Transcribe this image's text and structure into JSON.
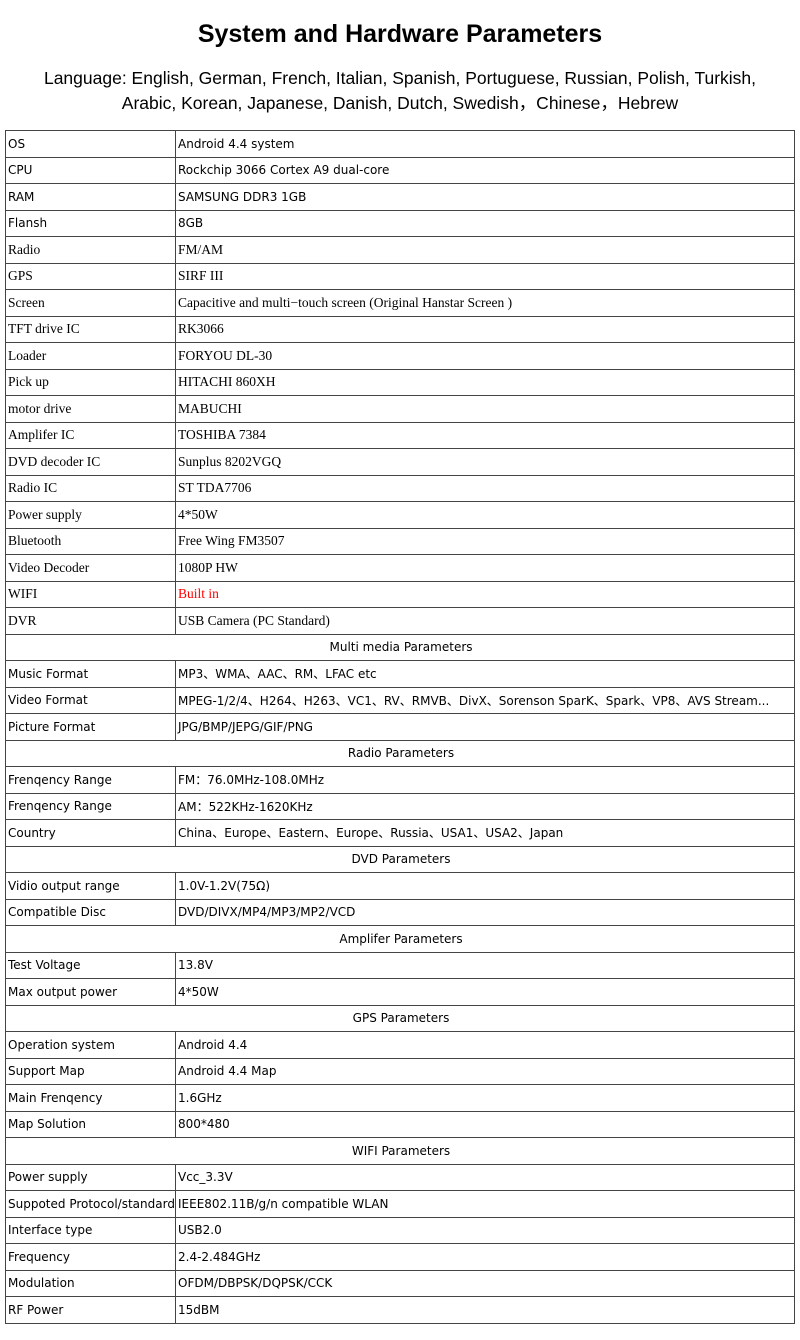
{
  "title": "System and Hardware Parameters",
  "language_line1": "Language: English, German, French, Italian, Spanish, Portuguese, Russian, Polish,  Turkish,",
  "language_line2": "Arabic, Korean, Japanese, Danish, Dutch, Swedish，Chinese，Hebrew",
  "accent_red": "#ff0000",
  "rows": [
    {
      "k": "OS",
      "v": "Android 4.4 system",
      "font": "sans"
    },
    {
      "k": "CPU",
      "v": "Rockchip 3066 Cortex A9 dual-core",
      "font": "sans"
    },
    {
      "k": "RAM",
      "v": "SAMSUNG DDR3 1GB",
      "font": "sans"
    },
    {
      "k": "Flansh",
      "v": "8GB",
      "font": "sans"
    },
    {
      "k": "Radio",
      "v": "FM/AM",
      "font": "serif"
    },
    {
      "k": "GPS",
      "v": "SIRF III",
      "font": "serif"
    },
    {
      "k": "Screen",
      "v": "Capacitive and multi−touch screen (Original Hanstar Screen )",
      "font": "serif"
    },
    {
      "k": "TFT drive IC",
      "v": "RK3066",
      "font": "serif"
    },
    {
      "k": "Loader",
      "v": "FORYOU  DL-30",
      "font": "serif"
    },
    {
      "k": "Pick up",
      "v": "HITACHI  860XH",
      "font": "serif"
    },
    {
      "k": "motor drive",
      "v": "MABUCHI",
      "font": "serif"
    },
    {
      "k": "Amplifer IC",
      "v": "TOSHIBA 7384",
      "font": "serif"
    },
    {
      "k": "DVD decoder IC",
      "v": "Sunplus   8202VGQ",
      "font": "serif"
    },
    {
      "k": "Radio IC",
      "v": "ST   TDA7706",
      "font": "serif"
    },
    {
      "k": "Power supply",
      "v": "4*50W",
      "font": "serif"
    },
    {
      "k": "Bluetooth",
      "v": "Free Wing    FM3507",
      "font": "serif"
    },
    {
      "k": "Video Decoder",
      "v": "1080P HW",
      "font": "serif"
    },
    {
      "k": "WIFI",
      "v": "Built in",
      "font": "serif",
      "red": true
    },
    {
      "k": "DVR",
      "v": "USB Camera (PC Standard)",
      "font": "serif"
    },
    {
      "section": "Multi media Parameters"
    },
    {
      "k": "Music Format",
      "v": "MP3、WMA、AAC、RM、LFAC etc",
      "font": "sans"
    },
    {
      "k": "Video Format",
      "v": "MPEG-1/2/4、H264、H263、VC1、RV、RMVB、DivX、Sorenson SparK、Spark、VP8、AVS Stream...",
      "font": "sans"
    },
    {
      "k": "Picture Format",
      "v": "JPG/BMP/JEPG/GIF/PNG",
      "font": "sans"
    },
    {
      "section": "Radio Parameters"
    },
    {
      "k": "Frenqency Range",
      "v": "FM：76.0MHz-108.0MHz",
      "font": "sans"
    },
    {
      "k": "Frenqency Range",
      "v": "AM：522KHz-1620KHz",
      "font": "sans"
    },
    {
      "k": "Country",
      "v": "China、Europe、Eastern、Europe、Russia、USA1、USA2、Japan",
      "font": "sans"
    },
    {
      "section": "DVD Parameters"
    },
    {
      "k": "Vidio output range",
      "v": "1.0V-1.2V(75Ω)",
      "font": "sans"
    },
    {
      "k": "Compatible Disc",
      "v": "DVD/DIVX/MP4/MP3/MP2/VCD",
      "font": "sans"
    },
    {
      "section": "Amplifer Parameters"
    },
    {
      "k": "Test Voltage",
      "v": "13.8V",
      "font": "sans"
    },
    {
      "k": "Max output power",
      "v": "4*50W",
      "font": "sans"
    },
    {
      "section": "GPS Parameters"
    },
    {
      "k": "Operation system",
      "v": "Android 4.4",
      "font": "sans"
    },
    {
      "k": "Support Map",
      "v": "Android 4.4 Map",
      "font": "sans"
    },
    {
      "k": "Main Frenqency",
      "v": "1.6GHz",
      "font": "sans"
    },
    {
      "k": "Map Solution",
      "v": "800*480",
      "font": "sans"
    },
    {
      "section": "WIFI Parameters"
    },
    {
      "k": "Power supply",
      "v": "Vcc_3.3V",
      "font": "sans"
    },
    {
      "k": "Suppoted Protocol/standard",
      "v": "IEEE802.11B/g/n compatible WLAN",
      "font": "sans"
    },
    {
      "k": "Interface  type",
      "v": "USB2.0",
      "font": "sans"
    },
    {
      "k": "Frequency",
      "v": "2.4-2.484GHz",
      "font": "sans"
    },
    {
      "k": "Modulation",
      "v": "OFDM/DBPSK/DQPSK/CCK",
      "font": "sans"
    },
    {
      "k": "RF Power",
      "v": "15dBM",
      "font": "sans"
    }
  ]
}
